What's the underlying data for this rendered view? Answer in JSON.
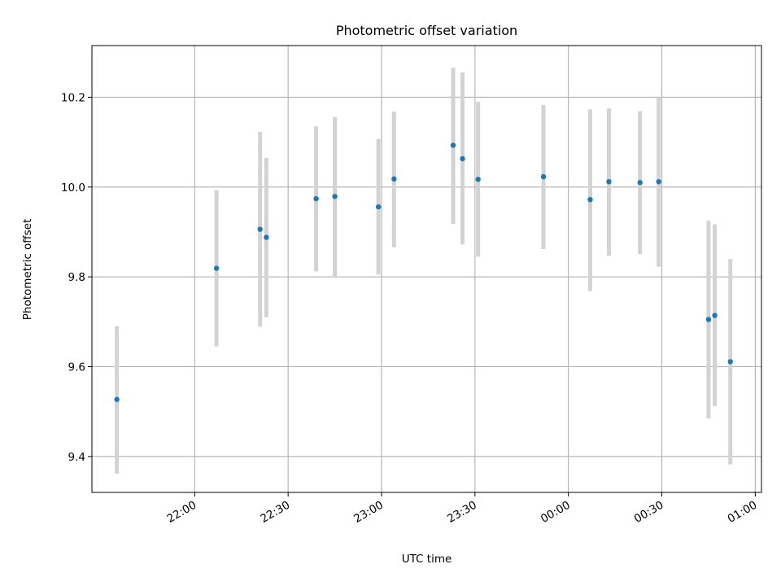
{
  "chart_data": {
    "type": "scatter",
    "title": "Photometric offset variation",
    "xlabel": "UTC time",
    "ylabel": "Photometric offset",
    "xlim": [
      "21:27",
      "01:02"
    ],
    "ylim": [
      9.32,
      10.315
    ],
    "x_ticks": [
      {
        "time": "22:00",
        "label": "22:00"
      },
      {
        "time": "22:30",
        "label": "22:30"
      },
      {
        "time": "23:00",
        "label": "23:00"
      },
      {
        "time": "23:30",
        "label": "23:30"
      },
      {
        "time": "00:00",
        "label": "00:00"
      },
      {
        "time": "00:30",
        "label": "00:30"
      },
      {
        "time": "01:00",
        "label": "01:00"
      }
    ],
    "y_ticks": [
      {
        "value": 9.4,
        "label": "9.4"
      },
      {
        "value": 9.6,
        "label": "9.6"
      },
      {
        "value": 9.8,
        "label": "9.8"
      },
      {
        "value": 10.0,
        "label": "10.0"
      },
      {
        "value": 10.2,
        "label": "10.2"
      }
    ],
    "grid": true,
    "point_color": "#1f77b4",
    "errorbar_color": "#d3d3d3",
    "points": [
      {
        "time": "21:35",
        "y": 9.527,
        "ylow": 9.362,
        "yhigh": 9.69
      },
      {
        "time": "22:07",
        "y": 9.819,
        "ylow": 9.645,
        "yhigh": 9.993
      },
      {
        "time": "22:21",
        "y": 9.906,
        "ylow": 9.689,
        "yhigh": 10.123
      },
      {
        "time": "22:23",
        "y": 9.888,
        "ylow": 9.71,
        "yhigh": 10.065
      },
      {
        "time": "22:39",
        "y": 9.974,
        "ylow": 9.812,
        "yhigh": 10.135
      },
      {
        "time": "22:45",
        "y": 9.979,
        "ylow": 9.8,
        "yhigh": 10.156
      },
      {
        "time": "22:59",
        "y": 9.956,
        "ylow": 9.805,
        "yhigh": 10.107
      },
      {
        "time": "23:04",
        "y": 10.018,
        "ylow": 9.866,
        "yhigh": 10.168
      },
      {
        "time": "23:23",
        "y": 10.093,
        "ylow": 9.918,
        "yhigh": 10.266
      },
      {
        "time": "23:26",
        "y": 10.063,
        "ylow": 9.872,
        "yhigh": 10.255
      },
      {
        "time": "23:31",
        "y": 10.017,
        "ylow": 9.845,
        "yhigh": 10.19
      },
      {
        "time": "23:52",
        "y": 10.023,
        "ylow": 9.862,
        "yhigh": 10.183
      },
      {
        "time": "00:07",
        "y": 9.972,
        "ylow": 9.768,
        "yhigh": 10.173
      },
      {
        "time": "00:13",
        "y": 10.012,
        "ylow": 9.847,
        "yhigh": 10.175
      },
      {
        "time": "00:23",
        "y": 10.01,
        "ylow": 9.851,
        "yhigh": 10.169
      },
      {
        "time": "00:29",
        "y": 10.012,
        "ylow": 9.823,
        "yhigh": 10.2
      },
      {
        "time": "00:45",
        "y": 9.705,
        "ylow": 9.485,
        "yhigh": 9.925
      },
      {
        "time": "00:47",
        "y": 9.714,
        "ylow": 9.512,
        "yhigh": 9.917
      },
      {
        "time": "00:52",
        "y": 9.611,
        "ylow": 9.382,
        "yhigh": 9.84
      }
    ]
  }
}
